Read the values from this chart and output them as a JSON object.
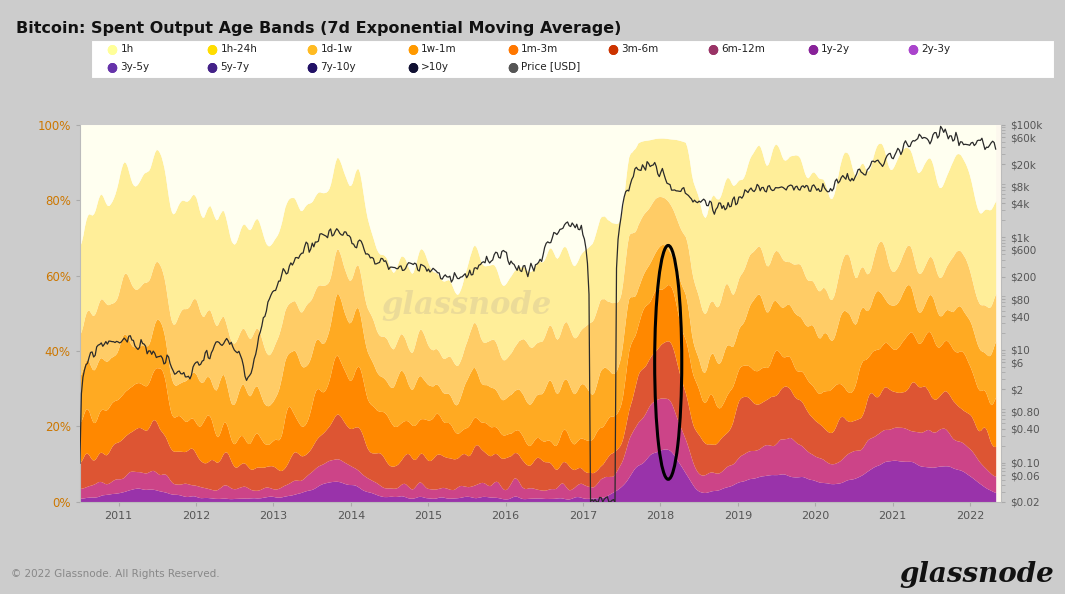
{
  "title": "Bitcoin: Spent Output Age Bands (7d Exponential Moving Average)",
  "background_color": "#d0d0d0",
  "chart_bg": "#fdf8ee",
  "legend_entries": [
    {
      "label": "1h",
      "color": "#ffff99"
    },
    {
      "label": "1h-24h",
      "color": "#ffdd00"
    },
    {
      "label": "1d-1w",
      "color": "#ffbb22"
    },
    {
      "label": "1w-1m",
      "color": "#ff9900"
    },
    {
      "label": "1m-3m",
      "color": "#ff7700"
    },
    {
      "label": "3m-6m",
      "color": "#cc3300"
    },
    {
      "label": "6m-12m",
      "color": "#993366"
    },
    {
      "label": "1y-2y",
      "color": "#882299"
    },
    {
      "label": "2y-3y",
      "color": "#aa44cc"
    },
    {
      "label": "3y-5y",
      "color": "#6633aa"
    },
    {
      "label": "5y-7y",
      "color": "#442288"
    },
    {
      "label": "7y-10y",
      "color": "#221166"
    },
    {
      "label": ">10y",
      "color": "#111133"
    },
    {
      "label": "Price [USD]",
      "color": "#555555"
    }
  ],
  "band_colors_bottom_to_top": [
    "#cc33aa",
    "#cc4488",
    "#dd5533",
    "#ff8800",
    "#ffaa00",
    "#ffcc44",
    "#ffee88",
    "#fffff0"
  ],
  "footer_left": "© 2022 Glassnode. All Rights Reserved.",
  "footer_right": "glassnode",
  "right_yticks_labels": [
    "$0.02",
    "$0.06",
    "$0.10",
    "$0.40",
    "$0.80",
    "$2",
    "$6",
    "$10",
    "$40",
    "$80",
    "$200",
    "$600",
    "$1k",
    "$4k",
    "$8k",
    "$20k",
    "$60k",
    "$100k"
  ],
  "right_yticks_vals": [
    0.02,
    0.06,
    0.1,
    0.4,
    0.8,
    2,
    6,
    10,
    40,
    80,
    200,
    600,
    1000,
    4000,
    8000,
    20000,
    60000,
    100000
  ]
}
